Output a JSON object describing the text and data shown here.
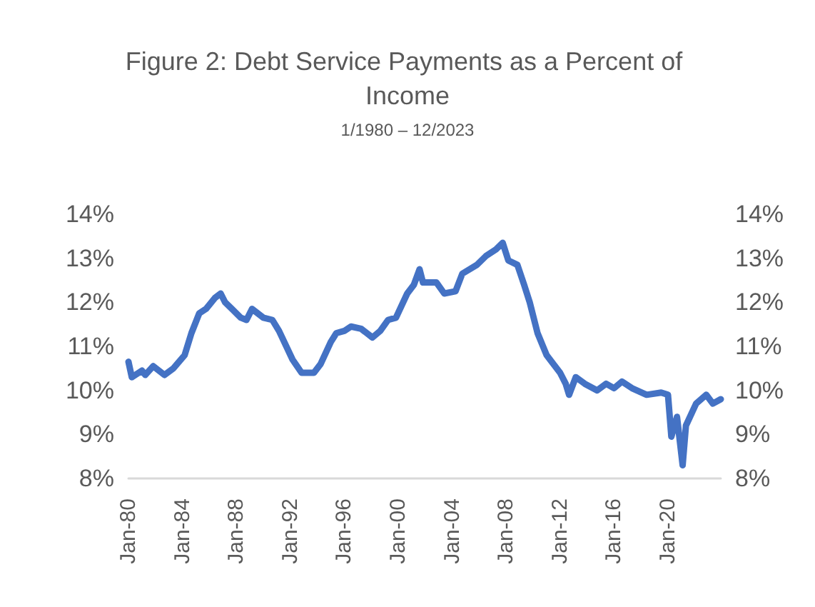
{
  "chart_data": {
    "type": "line",
    "title": "Figure 2: Debt Service Payments as a Percent of Income",
    "subtitle": "1/1980 – 12/2023",
    "x": [
      "1980-01",
      "1980-04",
      "1981-01",
      "1981-04",
      "1981-11",
      "1982-09",
      "1983-05",
      "1984-03",
      "1984-09",
      "1985-04",
      "1985-10",
      "1986-06",
      "1986-11",
      "1987-03",
      "1987-09",
      "1988-05",
      "1988-10",
      "1989-03",
      "1990-01",
      "1990-09",
      "1991-03",
      "1992-03",
      "1992-11",
      "1993-10",
      "1994-04",
      "1995-01",
      "1995-06",
      "1996-01",
      "1996-07",
      "1997-04",
      "1998-02",
      "1998-09",
      "1999-04",
      "1999-11",
      "2000-09",
      "2001-03",
      "2001-08",
      "2001-11",
      "2002-11",
      "2003-06",
      "2004-04",
      "2004-10",
      "2005-11",
      "2006-07",
      "2007-04",
      "2007-10",
      "2008-03",
      "2008-11",
      "2009-05",
      "2009-10",
      "2010-05",
      "2011-01",
      "2012-01",
      "2012-06",
      "2012-09",
      "2013-03",
      "2013-11",
      "2014-10",
      "2015-06",
      "2016-01",
      "2016-08",
      "2017-05",
      "2018-06",
      "2019-07",
      "2020-01",
      "2020-04",
      "2020-09",
      "2021-02",
      "2021-05",
      "2022-02",
      "2022-11",
      "2023-05",
      "2023-12"
    ],
    "values": [
      10.65,
      10.3,
      10.45,
      10.35,
      10.55,
      10.35,
      10.5,
      10.8,
      11.3,
      11.75,
      11.85,
      12.1,
      12.2,
      12.0,
      11.85,
      11.65,
      11.6,
      11.85,
      11.65,
      11.6,
      11.35,
      10.7,
      10.4,
      10.4,
      10.6,
      11.1,
      11.3,
      11.35,
      11.45,
      11.4,
      11.2,
      11.35,
      11.6,
      11.65,
      12.2,
      12.4,
      12.75,
      12.45,
      12.45,
      12.2,
      12.25,
      12.65,
      12.85,
      13.05,
      13.2,
      13.35,
      12.95,
      12.85,
      12.4,
      12.0,
      11.3,
      10.8,
      10.4,
      10.15,
      9.9,
      10.3,
      10.15,
      10.0,
      10.15,
      10.05,
      10.2,
      10.05,
      9.9,
      9.95,
      9.9,
      8.95,
      9.4,
      8.3,
      9.2,
      9.7,
      9.9,
      9.7,
      9.8
    ],
    "color": "#4472c4",
    "xlim": [
      "1980-01",
      "2023-12"
    ],
    "xticks": [
      {
        "value": "1980-01",
        "label": "Jan-80"
      },
      {
        "value": "1984-01",
        "label": "Jan-84"
      },
      {
        "value": "1988-01",
        "label": "Jan-88"
      },
      {
        "value": "1992-01",
        "label": "Jan-92"
      },
      {
        "value": "1996-01",
        "label": "Jan-96"
      },
      {
        "value": "2000-01",
        "label": "Jan-00"
      },
      {
        "value": "2004-01",
        "label": "Jan-04"
      },
      {
        "value": "2008-01",
        "label": "Jan-08"
      },
      {
        "value": "2012-01",
        "label": "Jan-12"
      },
      {
        "value": "2016-01",
        "label": "Jan-16"
      },
      {
        "value": "2020-01",
        "label": "Jan-20"
      }
    ],
    "ylim": [
      8,
      14
    ],
    "yticks": [
      {
        "value": 8,
        "label": "8%"
      },
      {
        "value": 9,
        "label": "9%"
      },
      {
        "value": 10,
        "label": "10%"
      },
      {
        "value": 11,
        "label": "11%"
      },
      {
        "value": 12,
        "label": "12%"
      },
      {
        "value": 13,
        "label": "13%"
      },
      {
        "value": 14,
        "label": "14%"
      }
    ],
    "y2lim": [
      8,
      14
    ],
    "y2ticks": [
      {
        "value": 8,
        "label": "8%"
      },
      {
        "value": 9,
        "label": "9%"
      },
      {
        "value": 10,
        "label": "10%"
      },
      {
        "value": 11,
        "label": "11%"
      },
      {
        "value": 12,
        "label": "12%"
      },
      {
        "value": 13,
        "label": "13%"
      },
      {
        "value": 14,
        "label": "14%"
      }
    ],
    "grid": false
  }
}
